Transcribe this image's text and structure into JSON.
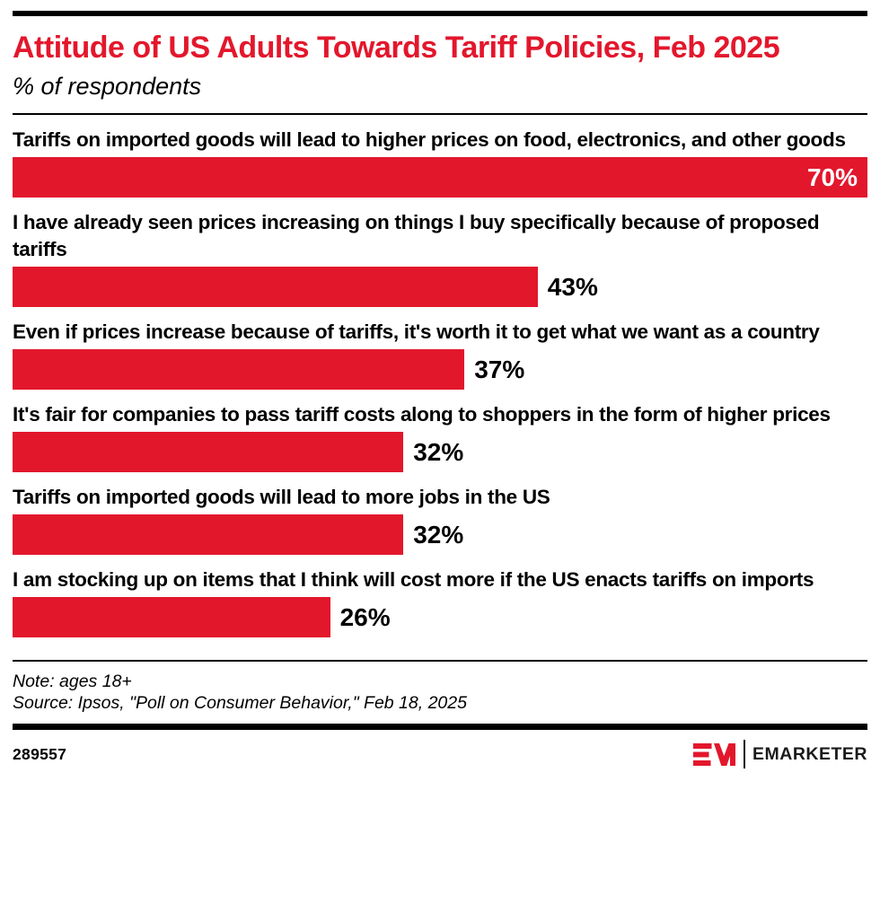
{
  "header": {
    "title": "Attitude of US Adults Towards Tariff Policies, Feb 2025",
    "subtitle": "% of respondents"
  },
  "chart_data": {
    "type": "bar",
    "orientation": "horizontal",
    "title": "Attitude of US Adults Towards Tariff Policies, Feb 2025",
    "subtitle": "% of respondents",
    "unit": "%",
    "categories": [
      "Tariffs on imported goods will lead to higher prices on food, electronics, and other goods",
      "I have already seen prices increasing on things I buy specifically because of proposed tariffs",
      "Even if prices increase because of tariffs, it's worth it to get what we want as a country",
      "It's fair for companies to pass tariff costs along to shoppers in the form of higher prices",
      "Tariffs on imported goods will lead to more jobs in the US",
      "I am stocking up on items that I think will cost more if the US enacts tariffs on imports"
    ],
    "values": [
      70,
      43,
      37,
      32,
      32,
      26
    ],
    "value_labels": [
      "70%",
      "43%",
      "37%",
      "32%",
      "32%",
      "26%"
    ],
    "bar_color": "#e3172c",
    "axis_scale_max": 70,
    "grid": false,
    "legend": false
  },
  "notes": {
    "note": "Note: ages 18+",
    "source": "Source: Ipsos, \"Poll on Consumer Behavior,\" Feb 18, 2025"
  },
  "footer": {
    "chart_id": "289557",
    "brand": "EMARKETER"
  },
  "colors": {
    "accent_red": "#e3172c",
    "rule_black": "#000000",
    "inside_value_text": "#ffffff"
  }
}
